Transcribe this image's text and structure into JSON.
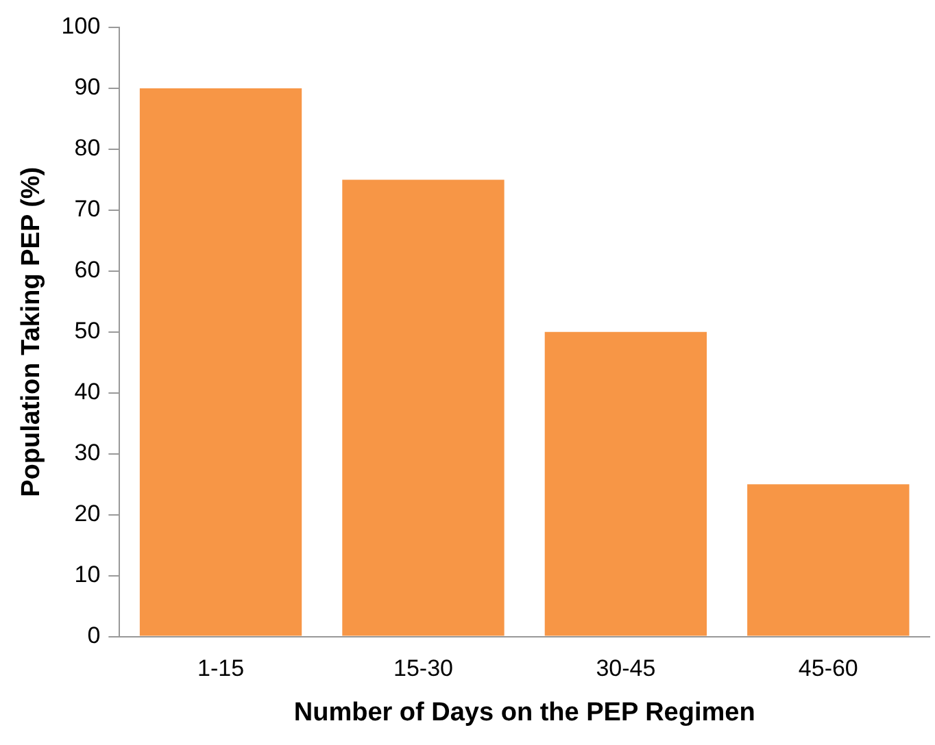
{
  "chart_data": {
    "type": "bar",
    "xlabel": "Number of Days on the PEP Regimen",
    "ylabel": "Population Taking PEP (%)",
    "categories": [
      "1-15",
      "15-30",
      "30-45",
      "45-60"
    ],
    "values": [
      90,
      75,
      50,
      25
    ],
    "color": "#f79646",
    "ylim": [
      0,
      100
    ],
    "yticks": [
      0,
      10,
      20,
      30,
      40,
      50,
      60,
      70,
      80,
      90,
      100
    ],
    "grid": false,
    "legend": false
  }
}
